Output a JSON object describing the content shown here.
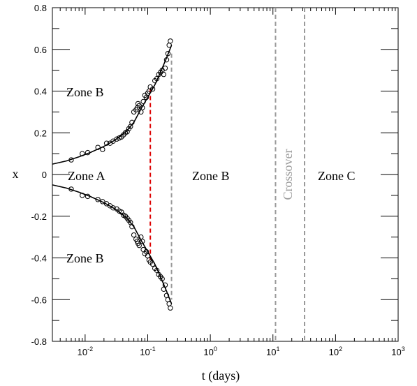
{
  "chart_data": {
    "type": "scatter",
    "xlabel": "t (days)",
    "ylabel": "x",
    "xscale": "log",
    "xlim": [
      0.003,
      1000
    ],
    "ylim": [
      -0.8,
      0.8
    ],
    "x_ticks": [
      {
        "base": "10",
        "exp": "-2",
        "value": 0.01
      },
      {
        "base": "10",
        "exp": "-1",
        "value": 0.1
      },
      {
        "base": "10",
        "exp": "0",
        "value": 1
      },
      {
        "base": "10",
        "exp": "1",
        "value": 10
      },
      {
        "base": "10",
        "exp": "2",
        "value": 100
      },
      {
        "base": "10",
        "exp": "3",
        "value": 1000
      }
    ],
    "y_ticks": [
      {
        "label": "0.8",
        "value": 0.8
      },
      {
        "label": "0.6",
        "value": 0.6
      },
      {
        "label": "0.4",
        "value": 0.4
      },
      {
        "label": "0.2",
        "value": 0.2
      },
      {
        "label": "0",
        "value": 0
      },
      {
        "label": "-0.2",
        "value": -0.2
      },
      {
        "label": "-0.4",
        "value": -0.4
      },
      {
        "label": "-0.6",
        "value": -0.6
      },
      {
        "label": "-0.8",
        "value": -0.8
      }
    ],
    "annotations": {
      "zone_b_upper": "Zone B",
      "zone_a": "Zone A",
      "zone_b_lower": "Zone B",
      "zone_b_middle": "Zone B",
      "crossover": "Crossover",
      "zone_c": "Zone C"
    },
    "vlines": [
      {
        "x": 0.11,
        "y_range": [
          -0.41,
          0.41
        ],
        "color": "#dd0000"
      },
      {
        "x": 0.24,
        "y_range": [
          -0.6,
          0.58
        ],
        "color": "#999999"
      },
      {
        "x": 11,
        "y_range": [
          -0.8,
          0.8
        ],
        "color": "#999999"
      },
      {
        "x": 32,
        "y_range": [
          -0.8,
          0.8
        ],
        "color": "#999999"
      }
    ],
    "fit_curves": [
      {
        "x": [
          0.003,
          0.005,
          0.008,
          0.012,
          0.02,
          0.03,
          0.045,
          0.06,
          0.08,
          0.1,
          0.13,
          0.16,
          0.2,
          0.24
        ],
        "y": [
          0.05,
          0.065,
          0.085,
          0.105,
          0.135,
          0.165,
          0.205,
          0.25,
          0.32,
          0.37,
          0.43,
          0.49,
          0.56,
          0.62
        ]
      },
      {
        "x": [
          0.003,
          0.005,
          0.008,
          0.012,
          0.02,
          0.03,
          0.045,
          0.06,
          0.08,
          0.1,
          0.13,
          0.16,
          0.2,
          0.24
        ],
        "y": [
          -0.05,
          -0.065,
          -0.085,
          -0.105,
          -0.135,
          -0.165,
          -0.205,
          -0.25,
          -0.32,
          -0.37,
          -0.43,
          -0.49,
          -0.56,
          -0.62
        ]
      }
    ],
    "series": [
      {
        "x": [
          0.006,
          0.009,
          0.011,
          0.016,
          0.019,
          0.022,
          0.025,
          0.028,
          0.032,
          0.035,
          0.038,
          0.041,
          0.044,
          0.047,
          0.05,
          0.053,
          0.056,
          0.06,
          0.065,
          0.068,
          0.07,
          0.073,
          0.078,
          0.082,
          0.085,
          0.09,
          0.095,
          0.1,
          0.105,
          0.11,
          0.12,
          0.13,
          0.14,
          0.15,
          0.16,
          0.17,
          0.18,
          0.19,
          0.2,
          0.21,
          0.22,
          0.23
        ],
        "y": [
          0.07,
          0.1,
          0.105,
          0.13,
          0.12,
          0.15,
          0.15,
          0.16,
          0.17,
          0.175,
          0.18,
          0.19,
          0.2,
          0.205,
          0.22,
          0.23,
          0.25,
          0.3,
          0.31,
          0.32,
          0.34,
          0.33,
          0.3,
          0.32,
          0.35,
          0.38,
          0.37,
          0.39,
          0.4,
          0.42,
          0.41,
          0.45,
          0.46,
          0.48,
          0.49,
          0.5,
          0.48,
          0.51,
          0.55,
          0.58,
          0.62,
          0.64
        ]
      },
      {
        "x": [
          0.006,
          0.009,
          0.011,
          0.016,
          0.019,
          0.022,
          0.025,
          0.028,
          0.032,
          0.035,
          0.038,
          0.041,
          0.044,
          0.047,
          0.05,
          0.053,
          0.056,
          0.06,
          0.065,
          0.068,
          0.07,
          0.073,
          0.078,
          0.082,
          0.085,
          0.09,
          0.095,
          0.1,
          0.105,
          0.11,
          0.12,
          0.13,
          0.14,
          0.15,
          0.16,
          0.17,
          0.18,
          0.19,
          0.2,
          0.21,
          0.22,
          0.23
        ],
        "y": [
          -0.07,
          -0.1,
          -0.105,
          -0.12,
          -0.13,
          -0.14,
          -0.15,
          -0.16,
          -0.165,
          -0.175,
          -0.18,
          -0.195,
          -0.2,
          -0.21,
          -0.22,
          -0.23,
          -0.25,
          -0.29,
          -0.31,
          -0.32,
          -0.33,
          -0.34,
          -0.3,
          -0.32,
          -0.36,
          -0.38,
          -0.37,
          -0.39,
          -0.41,
          -0.42,
          -0.43,
          -0.45,
          -0.46,
          -0.48,
          -0.49,
          -0.5,
          -0.55,
          -0.53,
          -0.58,
          -0.6,
          -0.62,
          -0.64
        ]
      }
    ]
  }
}
